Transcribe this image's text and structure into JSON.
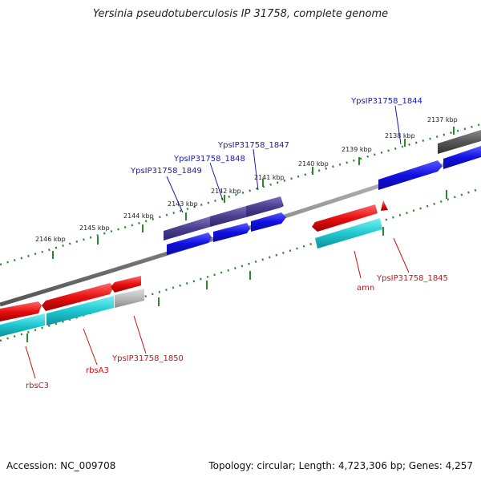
{
  "title": "Yersinia pseudotuberculosis IP 31758, complete genome",
  "footer": {
    "accession_label": "Accession:",
    "accession": "NC_009708",
    "topology_text": "Topology: circular; Length: 4,723,306 bp; Genes: 4,257"
  },
  "scale_labels": [
    "2137 kbp",
    "2138 kbp",
    "2139 kbp",
    "2140 kbp",
    "2141 kbp",
    "2142 kbp",
    "2143 kbp",
    "2144 kbp",
    "2145 kbp",
    "2146 kbp"
  ],
  "gene_labels": {
    "forward": [
      "YpsIP31758_1844",
      "YpsIP31758_1847",
      "YpsIP31758_1848",
      "YpsIP31758_1849"
    ],
    "reverse": [
      "amn",
      "YpsIP31758_1845",
      "YpsIP31758_1850",
      "rbsA3",
      "rbsC3"
    ]
  },
  "colors": {
    "backbone": "#8a8a8a",
    "tick": "#2a8a2a",
    "cds_forward": "#1010e0",
    "gene_forward_cog": "#4a3f8f",
    "gene_forward_gray": "#555555",
    "cds_reverse": "#e81010",
    "gene_reverse_cog": "#1ec8d0",
    "gene_reverse_gray": "#b8b8b8",
    "label_forward": "#1a1aaa",
    "label_reverse": "#cc1111"
  }
}
